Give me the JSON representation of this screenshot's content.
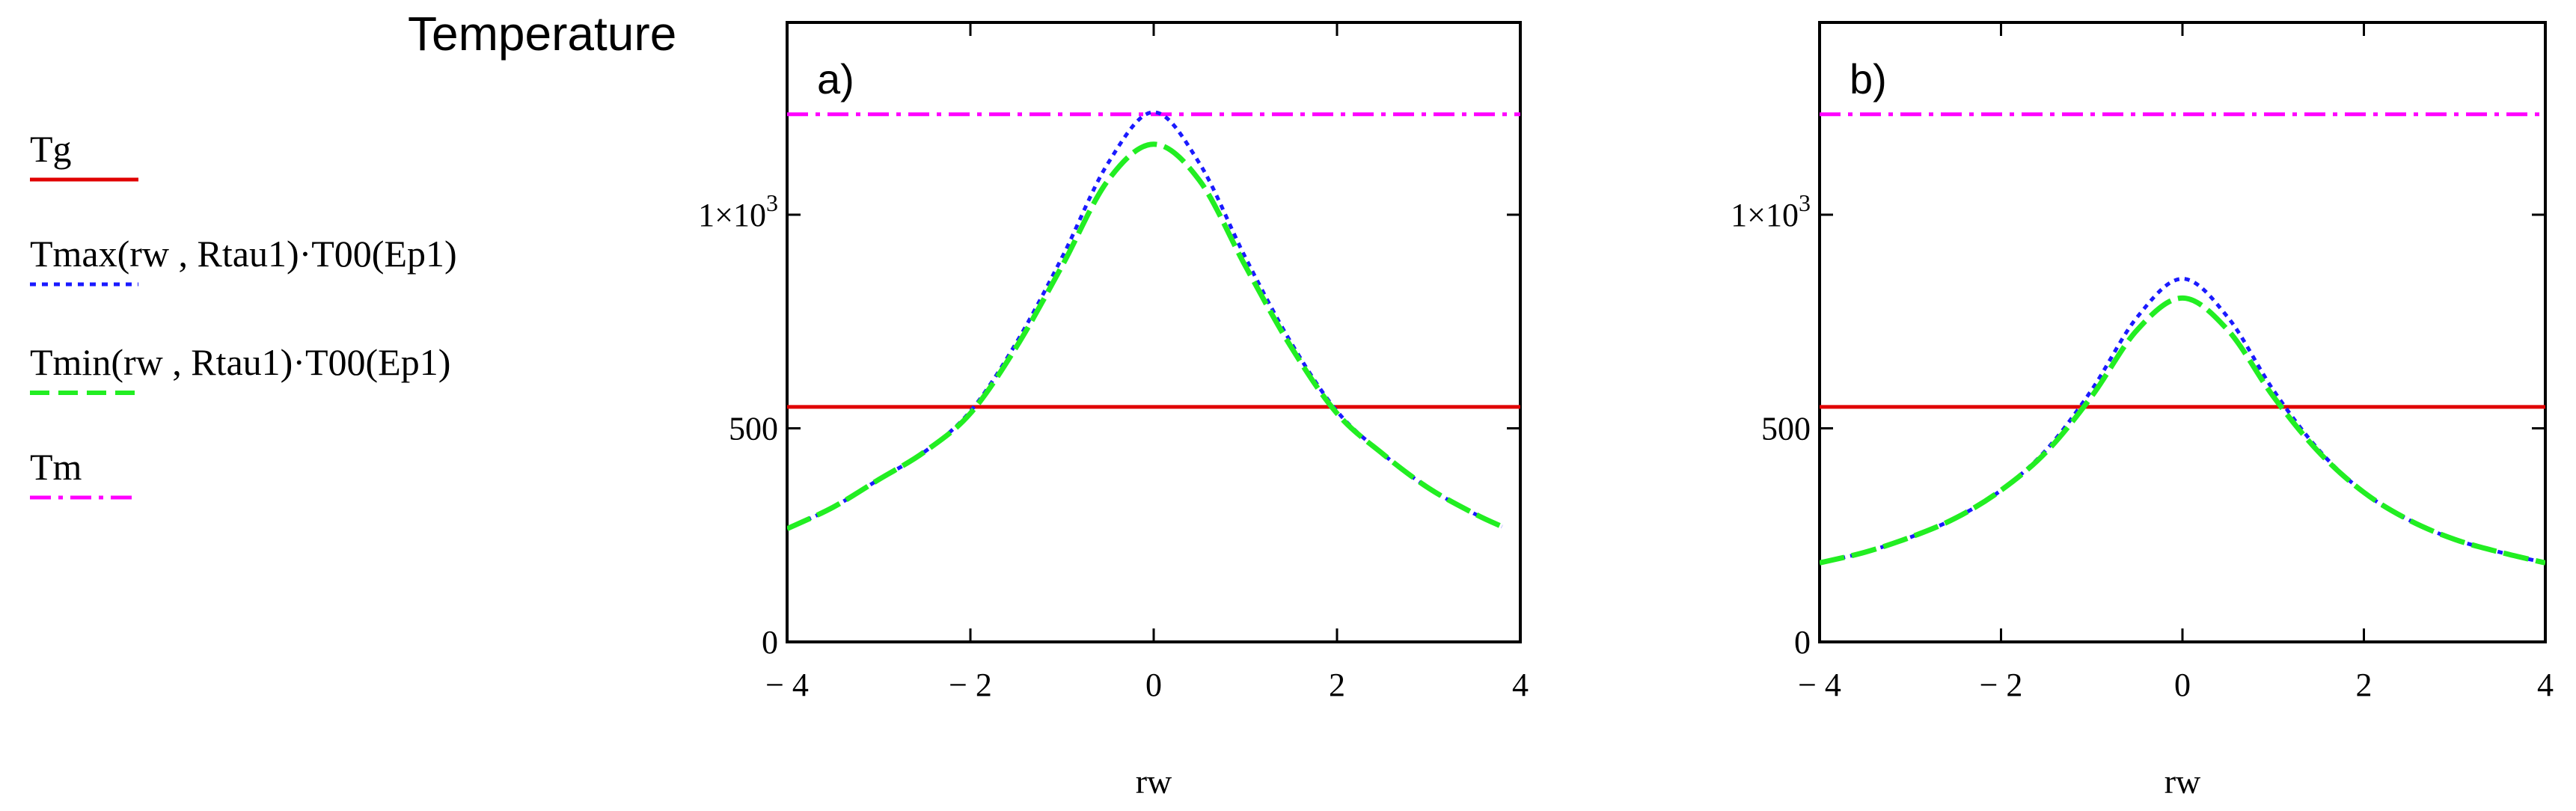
{
  "chart_data": {
    "type": "line",
    "title": "Temperature",
    "xlabel": "rw",
    "xlim": [
      -4,
      4
    ],
    "ylim": [
      0,
      1450
    ],
    "x_ticks": [
      -4,
      -2,
      0,
      2,
      4
    ],
    "x_tick_labels": [
      "− 4",
      "− 2",
      "0",
      "2",
      "4"
    ],
    "y_ticks": [
      0,
      500,
      1000
    ],
    "y_tick_labels": [
      "0",
      "500",
      "1×10"
    ],
    "y_tick_superscripts": [
      "",
      "",
      "3"
    ],
    "legend": [
      {
        "label": "Tg",
        "color": "#e00000",
        "dash": "solid"
      },
      {
        "label": "Tmax(rw , Rtau1)·T00(Ep1)",
        "color": "#1a1aff",
        "dash": "dot"
      },
      {
        "label": "Tmin(rw , Rtau1)·T00(Ep1)",
        "color": "#22ee22",
        "dash": "dash"
      },
      {
        "label": "Tm",
        "color": "#ff00ff",
        "dash": "dashdot"
      }
    ],
    "panels": [
      {
        "label": "a)",
        "Tg": 550,
        "Tm": 1235,
        "x": [
          -4,
          -3.5,
          -3,
          -2.5,
          -2,
          -1.5,
          -1,
          -0.5,
          0,
          0.5,
          1,
          1.5,
          2,
          2.5,
          3,
          3.5,
          3.8
        ],
        "series": [
          {
            "name": "Tmax(rw , Rtau1)·T00(Ep1)",
            "values": [
              265,
              315,
              380,
              445,
              540,
              700,
              900,
              1120,
              1240,
              1120,
              900,
              700,
              540,
              440,
              360,
              300,
              270
            ]
          },
          {
            "name": "Tmin(rw , Rtau1)·T00(Ep1)",
            "values": [
              265,
              315,
              380,
              445,
              535,
              690,
              880,
              1080,
              1165,
              1080,
              880,
              690,
              535,
              440,
              360,
              300,
              270
            ]
          }
        ]
      },
      {
        "label": "b)",
        "Tg": 550,
        "Tm": 1235,
        "x": [
          -4,
          -3.5,
          -3,
          -2.5,
          -2,
          -1.5,
          -1,
          -0.5,
          0,
          0.5,
          1,
          1.5,
          2,
          2.5,
          3,
          3.5,
          4
        ],
        "series": [
          {
            "name": "Tmax(rw , Rtau1)·T00(Ep1)",
            "values": [
              185,
              210,
              245,
              290,
              355,
              450,
              590,
              760,
              850,
              760,
              590,
              450,
              350,
              285,
              240,
              210,
              185
            ]
          },
          {
            "name": "Tmin(rw , Rtau1)·T00(Ep1)",
            "values": [
              185,
              210,
              245,
              290,
              355,
              445,
              575,
              730,
              805,
              730,
              575,
              445,
              350,
              285,
              240,
              210,
              185
            ]
          }
        ]
      }
    ]
  }
}
